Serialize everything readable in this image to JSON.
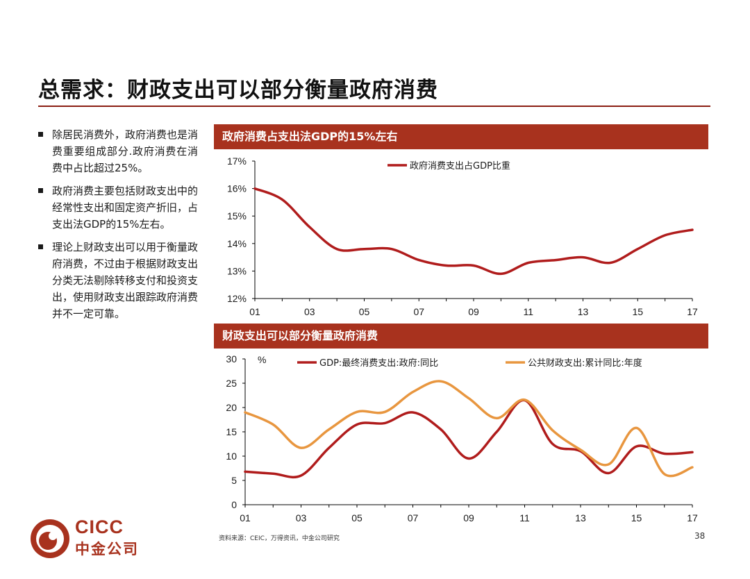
{
  "page": {
    "title": "总需求：财政支出可以部分衡量政府消费",
    "bullets": [
      "除居民消费外，政府消费也是消费重要组成部分.政府消费在消费中占比超过25%。",
      "政府消费主要包括财政支出中的经常性支出和固定资产折旧，占支出法GDP的15%左右。",
      "理论上财政支出可以用于衡量政府消费，不过由于根据财政支出分类无法剔除转移支付和投资支出，使用财政支出跟踪政府消费并不一定可靠。"
    ],
    "source": "资料来源：CEIC，万得资讯，中金公司研究",
    "page_number": "38",
    "logo": {
      "en": "CICC",
      "cn": "中金公司"
    }
  },
  "colors": {
    "dark_red": "#b01c1c",
    "orange": "#e8963f",
    "header_bg": "#a8321e"
  },
  "chart_data": [
    {
      "type": "line",
      "title": "政府消费占支出法GDP的15%左右",
      "x": [
        2001,
        2002,
        2003,
        2004,
        2005,
        2006,
        2007,
        2008,
        2009,
        2010,
        2011,
        2012,
        2013,
        2014,
        2015,
        2016,
        2017
      ],
      "tick_labels": [
        "01",
        "03",
        "05",
        "07",
        "09",
        "11",
        "13",
        "15",
        "17"
      ],
      "y_tick_labels": [
        "12%",
        "13%",
        "14%",
        "15%",
        "16%",
        "17%"
      ],
      "ylim": [
        12,
        17
      ],
      "legend_position": "top-center",
      "series": [
        {
          "name": "政府消费支出占GDP比重",
          "color": "#b01c1c",
          "values": [
            16.0,
            15.6,
            14.6,
            13.8,
            13.8,
            13.8,
            13.4,
            13.2,
            13.2,
            12.9,
            13.3,
            13.4,
            13.5,
            13.3,
            13.8,
            14.3,
            14.5
          ]
        }
      ]
    },
    {
      "type": "line",
      "title": "财政支出可以部分衡量政府消费",
      "x": [
        2001,
        2002,
        2003,
        2004,
        2005,
        2006,
        2007,
        2008,
        2009,
        2010,
        2011,
        2012,
        2013,
        2014,
        2015,
        2016,
        2017
      ],
      "tick_labels": [
        "01",
        "03",
        "05",
        "07",
        "09",
        "11",
        "13",
        "15",
        "17"
      ],
      "y_tick_labels": [
        "0",
        "5",
        "10",
        "15",
        "20",
        "25",
        "30"
      ],
      "unit": "%",
      "ylim": [
        0,
        30
      ],
      "legend_position": "top",
      "series": [
        {
          "name": "GDP:最终消费支出:政府:同比",
          "color": "#b01c1c",
          "values": [
            6.8,
            6.4,
            6.0,
            11.7,
            16.5,
            16.8,
            19.0,
            15.5,
            9.5,
            15.0,
            21.5,
            12.5,
            11.0,
            6.5,
            12.0,
            10.5,
            10.8
          ]
        },
        {
          "name": "公共财政支出:累计同比:年度",
          "color": "#e8963f",
          "values": [
            19.0,
            16.5,
            11.7,
            15.5,
            19.1,
            19.1,
            23.2,
            25.4,
            21.9,
            17.8,
            21.6,
            15.3,
            11.3,
            8.3,
            15.8,
            6.3,
            7.7
          ]
        }
      ]
    }
  ]
}
